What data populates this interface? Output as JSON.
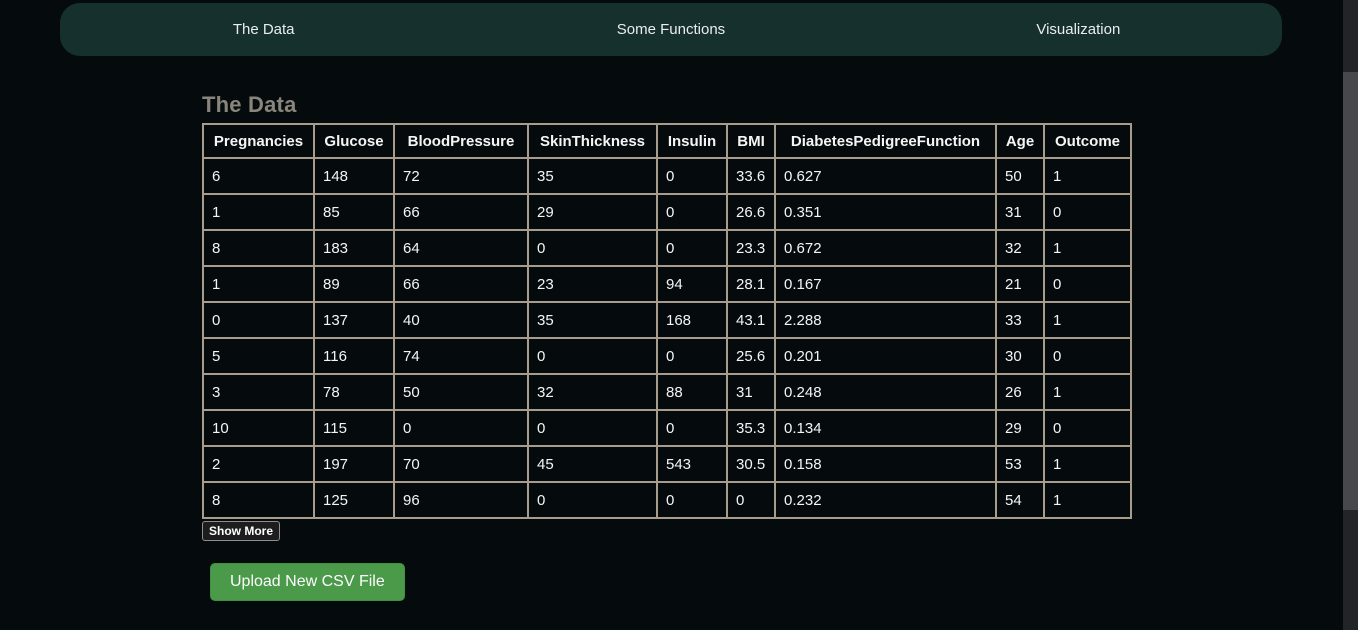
{
  "nav": {
    "tabs": [
      {
        "id": "the-data",
        "label": "The Data"
      },
      {
        "id": "some-functions",
        "label": "Some Functions"
      },
      {
        "id": "visualization",
        "label": "Visualization"
      }
    ]
  },
  "main": {
    "heading": "The Data",
    "table": {
      "columns": [
        "Pregnancies",
        "Glucose",
        "BloodPressure",
        "SkinThickness",
        "Insulin",
        "BMI",
        "DiabetesPedigreeFunction",
        "Age",
        "Outcome"
      ],
      "rows": [
        [
          "6",
          "148",
          "72",
          "35",
          "0",
          "33.6",
          "0.627",
          "50",
          "1"
        ],
        [
          "1",
          "85",
          "66",
          "29",
          "0",
          "26.6",
          "0.351",
          "31",
          "0"
        ],
        [
          "8",
          "183",
          "64",
          "0",
          "0",
          "23.3",
          "0.672",
          "32",
          "1"
        ],
        [
          "1",
          "89",
          "66",
          "23",
          "94",
          "28.1",
          "0.167",
          "21",
          "0"
        ],
        [
          "0",
          "137",
          "40",
          "35",
          "168",
          "43.1",
          "2.288",
          "33",
          "1"
        ],
        [
          "5",
          "116",
          "74",
          "0",
          "0",
          "25.6",
          "0.201",
          "30",
          "0"
        ],
        [
          "3",
          "78",
          "50",
          "32",
          "88",
          "31",
          "0.248",
          "26",
          "1"
        ],
        [
          "10",
          "115",
          "0",
          "0",
          "0",
          "35.3",
          "0.134",
          "29",
          "0"
        ],
        [
          "2",
          "197",
          "70",
          "45",
          "543",
          "30.5",
          "0.158",
          "53",
          "1"
        ],
        [
          "8",
          "125",
          "96",
          "0",
          "0",
          "0",
          "0.232",
          "54",
          "1"
        ]
      ]
    },
    "show_more_label": "Show More",
    "upload_button_label": "Upload New CSV File"
  },
  "colors": {
    "page_background": "#050b0d",
    "nav_background": "#16302e",
    "heading_text": "#8a857c",
    "table_border": "#a89d8d",
    "upload_button_green": "#4a9a4a"
  }
}
